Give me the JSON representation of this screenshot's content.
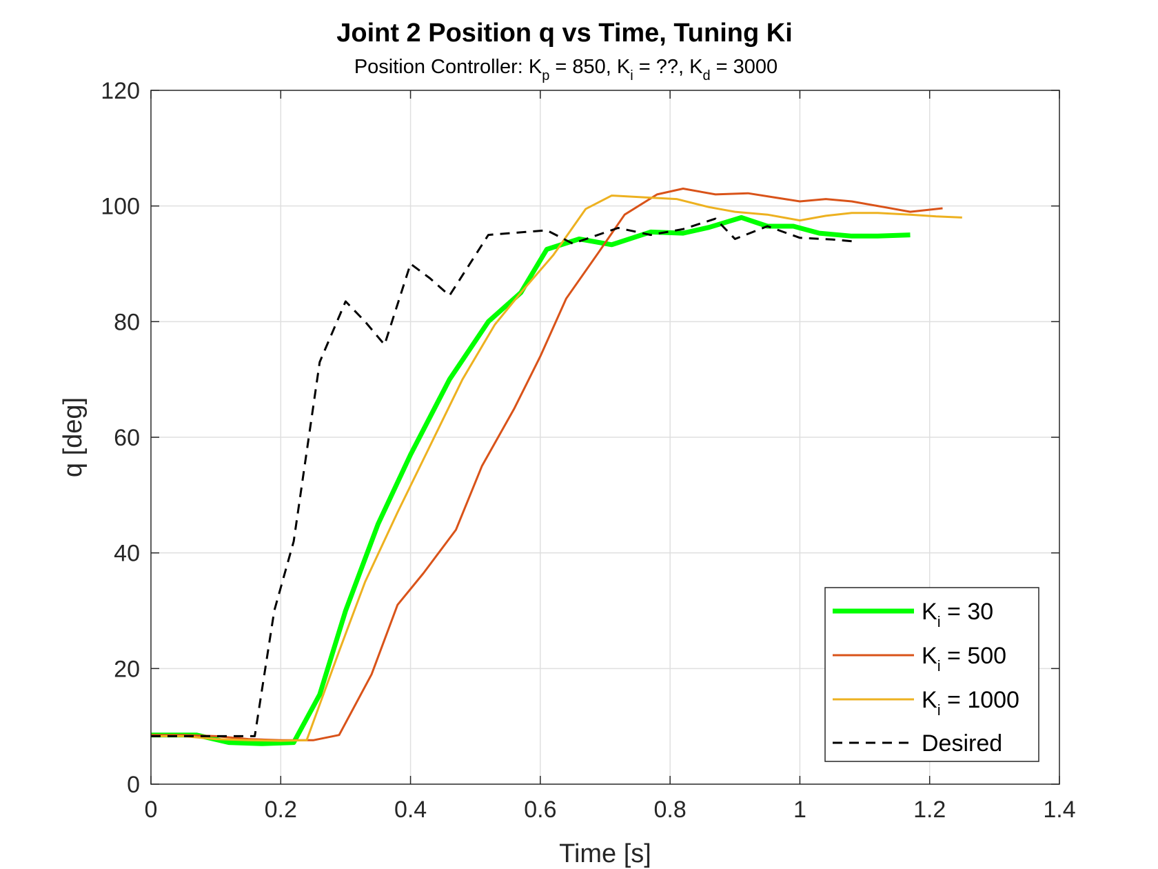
{
  "chart_data": {
    "type": "line",
    "title": "Joint 2 Position q vs Time, Tuning Ki",
    "subtitle": {
      "prefix": "Position Controller: K",
      "kp_sub": "p",
      "kp_rest": " = 850, K",
      "ki_sub": "i",
      "ki_rest": " = ??, K",
      "kd_sub": "d",
      "kd_rest": " = 3000"
    },
    "xlabel": "Time [s]",
    "ylabel": "q [deg]",
    "xlim": [
      0,
      1.4
    ],
    "ylim": [
      0,
      120
    ],
    "xticks": [
      0,
      0.2,
      0.4,
      0.6,
      0.8,
      1,
      1.2,
      1.4
    ],
    "xtick_labels": [
      "0",
      "0.2",
      "0.4",
      "0.6",
      "0.8",
      "1",
      "1.2",
      "1.4"
    ],
    "yticks": [
      0,
      20,
      40,
      60,
      80,
      100,
      120
    ],
    "ytick_labels": [
      "0",
      "20",
      "40",
      "60",
      "80",
      "100",
      "120"
    ],
    "grid": true,
    "legend_position": "bottom-right",
    "series": [
      {
        "name_prefix": "K",
        "name_sub": "i",
        "name_rest": " = 30",
        "color": "#00ff00",
        "dash": "solid",
        "x": [
          0,
          0.07,
          0.12,
          0.17,
          0.22,
          0.26,
          0.3,
          0.35,
          0.4,
          0.46,
          0.52,
          0.57,
          0.61,
          0.66,
          0.71,
          0.77,
          0.82,
          0.86,
          0.91,
          0.95,
          0.99,
          1.03,
          1.08,
          1.12,
          1.17
        ],
        "y": [
          8.5,
          8.5,
          7.2,
          7,
          7.2,
          15.5,
          30,
          45,
          57,
          70,
          80,
          85,
          92.5,
          94.3,
          93.3,
          95.5,
          95.3,
          96.3,
          98,
          96.5,
          96.5,
          95.3,
          94.8,
          94.8,
          95
        ]
      },
      {
        "name_prefix": "K",
        "name_sub": "i",
        "name_rest": " = 500",
        "color": "#d95319",
        "dash": "solid",
        "x": [
          0,
          0.05,
          0.1,
          0.15,
          0.2,
          0.25,
          0.29,
          0.34,
          0.38,
          0.42,
          0.47,
          0.51,
          0.56,
          0.6,
          0.64,
          0.69,
          0.73,
          0.78,
          0.82,
          0.87,
          0.92,
          0.96,
          1,
          1.04,
          1.08,
          1.13,
          1.17,
          1.22
        ],
        "y": [
          8.5,
          8.5,
          8.3,
          7.8,
          7.6,
          7.6,
          8.5,
          19,
          31,
          36.5,
          44,
          55,
          65,
          74,
          84,
          92,
          98.5,
          102,
          103,
          102,
          102.2,
          101.5,
          100.8,
          101.2,
          100.8,
          99.8,
          99,
          99.6
        ]
      },
      {
        "name_prefix": "K",
        "name_sub": "i",
        "name_rest": " = 1000",
        "color": "#edb120",
        "dash": "solid",
        "x": [
          0,
          0.05,
          0.1,
          0.15,
          0.2,
          0.24,
          0.29,
          0.33,
          0.38,
          0.43,
          0.48,
          0.53,
          0.57,
          0.62,
          0.67,
          0.71,
          0.76,
          0.81,
          0.86,
          0.9,
          0.95,
          1,
          1.04,
          1.08,
          1.12,
          1.17,
          1.21,
          1.25
        ],
        "y": [
          8.3,
          8.3,
          7.8,
          7.6,
          7.5,
          7.6,
          23,
          35,
          47,
          58.5,
          70,
          79.5,
          85,
          91.5,
          99.5,
          101.8,
          101.5,
          101.2,
          99.8,
          99,
          98.5,
          97.5,
          98.3,
          98.8,
          98.8,
          98.5,
          98.2,
          98
        ]
      },
      {
        "name_prefix": "",
        "name_sub": "",
        "name_rest": "Desired",
        "color": "#000000",
        "dash": "dashed",
        "x": [
          0,
          0.04,
          0.08,
          0.12,
          0.16,
          0.19,
          0.22,
          0.26,
          0.3,
          0.33,
          0.36,
          0.4,
          0.43,
          0.46,
          0.52,
          0.61,
          0.65,
          0.72,
          0.77,
          0.82,
          0.87,
          0.9,
          0.95,
          1,
          1.05,
          1.09
        ],
        "y": [
          8.3,
          8.3,
          8.3,
          8.3,
          8.3,
          30,
          42,
          73,
          83.5,
          80,
          76,
          90,
          87.5,
          84.5,
          95,
          95.8,
          93.5,
          96.2,
          95,
          96,
          97.8,
          94.3,
          96.5,
          94.5,
          94.2,
          93.8
        ]
      }
    ]
  }
}
